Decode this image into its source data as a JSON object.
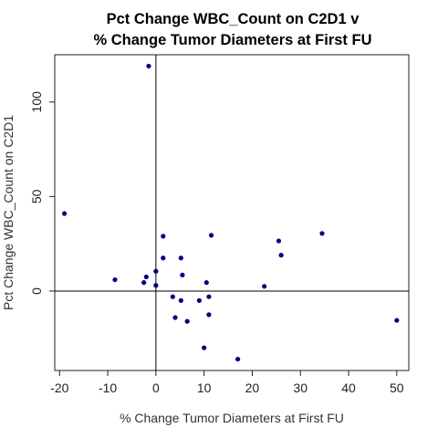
{
  "chart_data": {
    "type": "scatter",
    "title_lines": [
      "Pct Change WBC_Count on C2D1 v",
      "% Change Tumor Diameters at First FU"
    ],
    "xlabel": "% Change Tumor Diameters at First FU",
    "ylabel": "Pct Change WBC_Count on C2D1",
    "xlim": [
      -21,
      52.5
    ],
    "ylim": [
      -42,
      125
    ],
    "xticks": [
      -20,
      -10,
      0,
      10,
      20,
      30,
      40,
      50
    ],
    "yticks": [
      0,
      50,
      100
    ],
    "reference_lines": {
      "x": 0,
      "y": 0
    },
    "grid": false,
    "marker_color": "#000080",
    "points": [
      {
        "x": -19,
        "y": 41
      },
      {
        "x": -8.5,
        "y": 6
      },
      {
        "x": -2.5,
        "y": 4.5
      },
      {
        "x": -2.0,
        "y": 7.5
      },
      {
        "x": -1.5,
        "y": 119
      },
      {
        "x": 0,
        "y": 10.5
      },
      {
        "x": 0,
        "y": 3
      },
      {
        "x": 1.5,
        "y": 17.5
      },
      {
        "x": 1.5,
        "y": 29
      },
      {
        "x": 3.5,
        "y": -3
      },
      {
        "x": 4,
        "y": -14
      },
      {
        "x": 5.2,
        "y": 17.5
      },
      {
        "x": 5.2,
        "y": -5
      },
      {
        "x": 5.5,
        "y": 8.5
      },
      {
        "x": 6.5,
        "y": -16
      },
      {
        "x": 9,
        "y": -5
      },
      {
        "x": 10,
        "y": -30
      },
      {
        "x": 10.5,
        "y": 4.5
      },
      {
        "x": 11,
        "y": -3
      },
      {
        "x": 11,
        "y": -12.5
      },
      {
        "x": 11.5,
        "y": 29.5
      },
      {
        "x": 17,
        "y": -36
      },
      {
        "x": 22.5,
        "y": 2.5
      },
      {
        "x": 25.5,
        "y": 26.5
      },
      {
        "x": 26,
        "y": 19
      },
      {
        "x": 34.5,
        "y": 30.5
      },
      {
        "x": 50,
        "y": -15.5
      }
    ]
  }
}
